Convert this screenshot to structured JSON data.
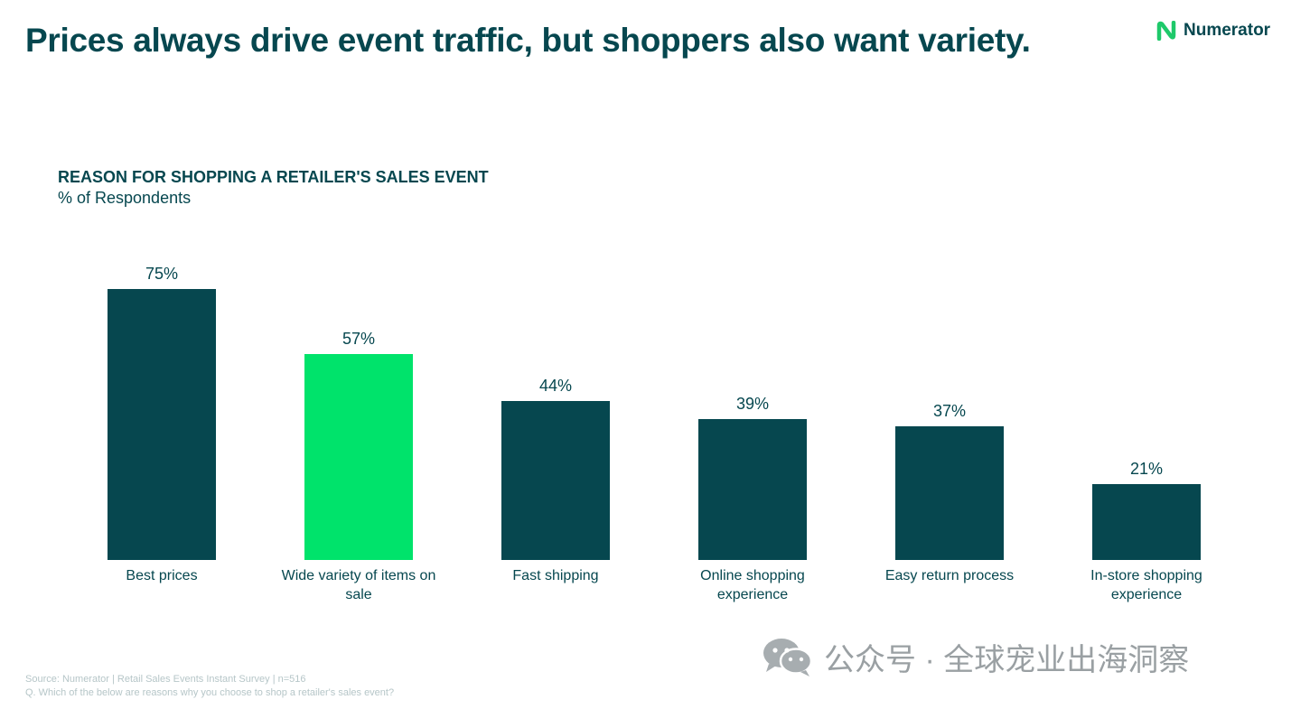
{
  "header": {
    "headline": "Prices always drive event traffic, but shoppers also want variety.",
    "brand": "Numerator"
  },
  "colors": {
    "primary": "#06474f",
    "accent": "#00e36b",
    "logo_green": "#1ec96a"
  },
  "chart_data": {
    "type": "bar",
    "title": "REASON FOR SHOPPING A RETAILER'S SALES EVENT",
    "subtitle": "% of Respondents",
    "categories": [
      [
        "Best prices"
      ],
      [
        "Wide variety of items on",
        "sale"
      ],
      [
        "Fast shipping"
      ],
      [
        "Online shopping",
        "experience"
      ],
      [
        "Easy return process"
      ],
      [
        "In-store shopping",
        "experience"
      ]
    ],
    "values": [
      75,
      57,
      44,
      39,
      37,
      21
    ],
    "value_labels": [
      "75%",
      "57%",
      "44%",
      "39%",
      "37%",
      "21%"
    ],
    "highlight_index": 1,
    "unit": "%",
    "ylim": [
      0,
      100
    ],
    "grid": false,
    "legend": "none"
  },
  "footer": {
    "source": "Source: Numerator | Retail Sales Events Instant Survey | n=516",
    "question": "Q. Which of the below are reasons why you choose to shop a retailer's sales event?"
  },
  "watermark": {
    "icon": "wechat-icon",
    "text": "公众号 · 全球宠业出海洞察"
  }
}
